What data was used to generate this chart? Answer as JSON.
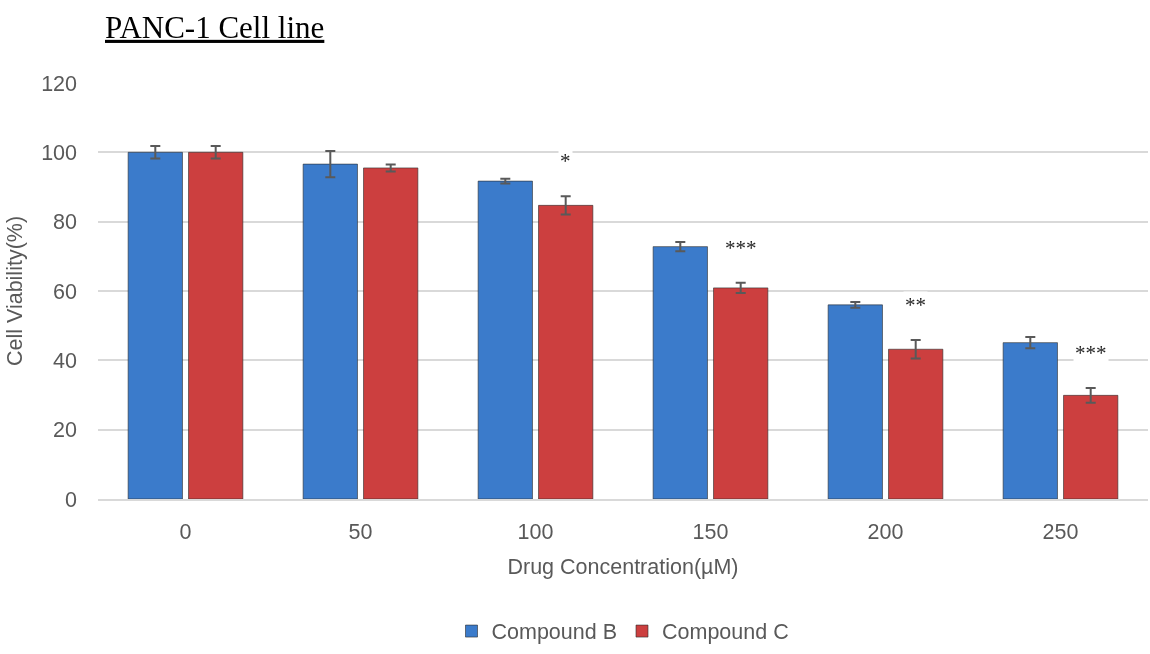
{
  "chart_data": {
    "type": "bar",
    "title": "PANC-1 Cell line",
    "xlabel": "Drug Concentration(µM)",
    "ylabel": "Cell Viability(%)",
    "categories": [
      "0",
      "50",
      "100",
      "150",
      "200",
      "250"
    ],
    "series": [
      {
        "name": "Compound B",
        "color": "#3b7bcb",
        "values": [
          100,
          96.6,
          91.7,
          72.8,
          56.0,
          45.1
        ],
        "errors": [
          1.8,
          3.8,
          0.7,
          1.3,
          0.8,
          1.6
        ]
      },
      {
        "name": "Compound C",
        "color": "#cc3f3f",
        "values": [
          100,
          95.5,
          84.7,
          60.9,
          43.2,
          29.9
        ],
        "errors": [
          1.8,
          1.0,
          2.6,
          1.5,
          2.7,
          2.1
        ]
      }
    ],
    "ylim": [
      0,
      120
    ],
    "yticks": [
      0,
      20,
      40,
      60,
      80,
      100,
      120
    ],
    "grid": "y",
    "legend": "bottom",
    "annotations": [
      {
        "text": "*",
        "x": "100",
        "y": 84.7
      },
      {
        "text": "***",
        "x": "150",
        "y": 60.9
      },
      {
        "text": "**",
        "x": "200",
        "y": 43.2
      },
      {
        "text": "***",
        "x": "250",
        "y": 29.9
      }
    ]
  }
}
